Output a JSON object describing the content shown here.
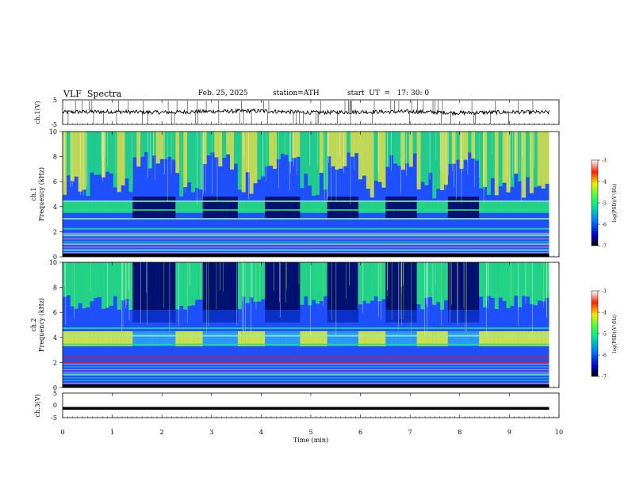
{
  "header": {
    "title": "VLF  Spectra",
    "date": "Feb. 25, 2025",
    "station": "station=ATH",
    "start_ut": "start  UT  =   17: 30: 0"
  },
  "colors": {
    "spectrogram_bg": "#1e50ff",
    "spectrogram_quiet": "#00106e",
    "spectrogram_green": "#22e07a",
    "spectrogram_yellow": "#dcee3a",
    "spectrogram_red": "#d42020",
    "trace": "#000000"
  },
  "chart_data": [
    {
      "type": "line",
      "panel": "ch1-waveform",
      "ylabel": "ch.1(V)",
      "ylim": [
        -5,
        5
      ],
      "y_ticklabels": [
        "5",
        "-5"
      ],
      "xlim": [
        0,
        10
      ],
      "x": [
        0,
        1,
        2,
        3,
        4,
        5,
        6,
        7,
        8,
        9,
        9.8
      ],
      "y": [
        0.0,
        0.2,
        -0.1,
        0.3,
        0.5,
        -0.2,
        0.1,
        0.2,
        -0.3,
        0.0,
        -0.1
      ]
    },
    {
      "type": "heatmap",
      "panel": "ch1-spectrogram",
      "ylabel": "ch.1\nFrequency  (kHz)",
      "ylim": [
        0,
        10
      ],
      "y_ticklabels": [
        "0",
        "2",
        "4",
        "6",
        "8",
        "10"
      ],
      "xlim": [
        0,
        10
      ],
      "colorbar": {
        "label": "log(PSD)(V²/Hz)",
        "range": [
          -7,
          -3
        ],
        "ticklabels": [
          "-3",
          "-4",
          "-5",
          "-6",
          "-7"
        ]
      },
      "quiet_intervals_min": [
        [
          1.35,
          2.2
        ],
        [
          2.8,
          3.5
        ],
        [
          4.05,
          4.75
        ],
        [
          5.3,
          5.95
        ],
        [
          6.5,
          7.1
        ],
        [
          7.75,
          8.35
        ]
      ],
      "bands_khz": [
        0.6,
        1.1,
        1.8,
        2.3,
        3.1,
        3.8,
        4.5
      ]
    },
    {
      "type": "heatmap",
      "panel": "ch2-spectrogram",
      "ylabel": "ch.2\nFrequency  (kHz)",
      "ylim": [
        0,
        10
      ],
      "y_ticklabels": [
        "0",
        "2",
        "4",
        "6",
        "8",
        "10"
      ],
      "xlim": [
        0,
        10
      ],
      "colorbar": {
        "label": "log(PSD)(V²/Hz)",
        "range": [
          -7,
          -3
        ],
        "ticklabels": [
          "-3",
          "-4",
          "-5",
          "-6",
          "-7"
        ]
      },
      "quiet_intervals_min": [
        [
          1.35,
          2.2
        ],
        [
          2.8,
          3.5
        ],
        [
          4.05,
          4.75
        ],
        [
          5.3,
          5.95
        ],
        [
          6.5,
          7.1
        ],
        [
          7.75,
          8.35
        ]
      ],
      "bands_khz": [
        1.1,
        2.1,
        2.5,
        3.5,
        4.2,
        4.8
      ]
    },
    {
      "type": "line",
      "panel": "ch3-waveform",
      "ylabel": "ch.3(V)",
      "ylim": [
        -5,
        5
      ],
      "y_ticklabels": [
        "5",
        "0",
        "-5"
      ],
      "xlim": [
        0,
        10
      ],
      "x": [
        0,
        9.8
      ],
      "y": [
        -1.2,
        -1.2
      ]
    }
  ],
  "x_axis": {
    "label": "Time  (min)",
    "ticklabels": [
      "0",
      "1",
      "2",
      "3",
      "4",
      "5",
      "6",
      "7",
      "8",
      "9",
      "10"
    ]
  }
}
